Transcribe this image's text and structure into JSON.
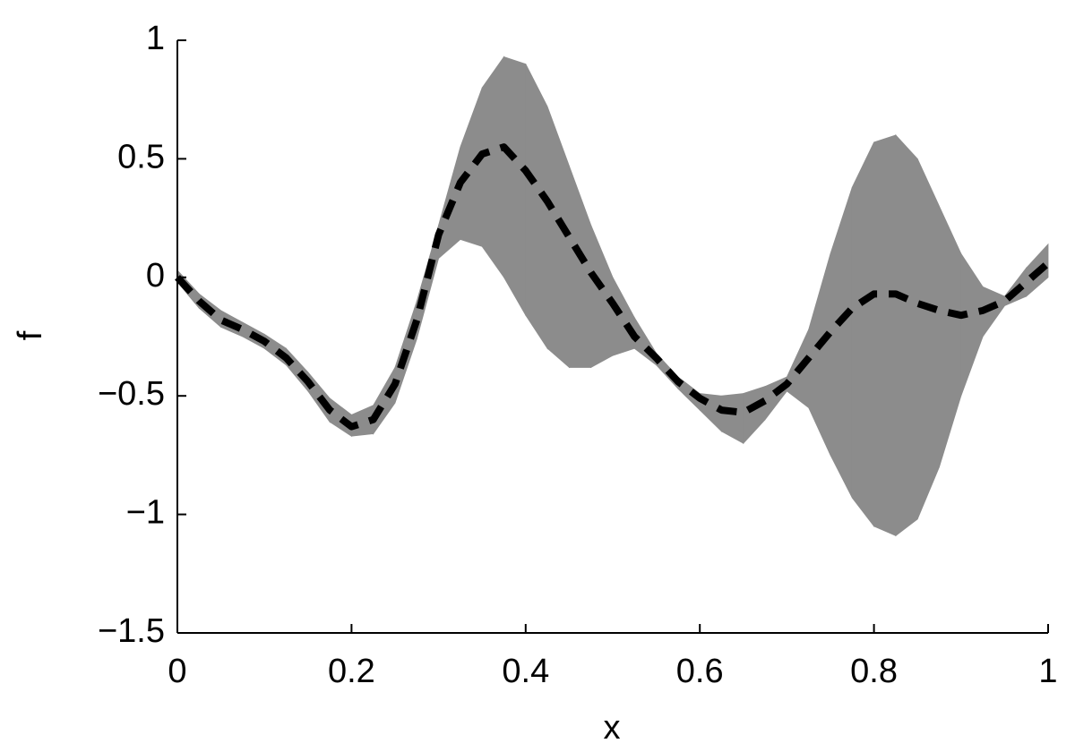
{
  "chart_data": {
    "type": "line",
    "xlabel": "x",
    "ylabel": "f",
    "x": [
      0,
      0.025,
      0.05,
      0.075,
      0.1,
      0.125,
      0.15,
      0.175,
      0.2,
      0.225,
      0.25,
      0.275,
      0.3,
      0.325,
      0.35,
      0.375,
      0.4,
      0.425,
      0.45,
      0.475,
      0.5,
      0.525,
      0.55,
      0.575,
      0.6,
      0.625,
      0.65,
      0.675,
      0.7,
      0.725,
      0.75,
      0.775,
      0.8,
      0.825,
      0.85,
      0.875,
      0.9,
      0.925,
      0.95,
      0.975,
      1
    ],
    "series": [
      {
        "color": "#000000",
        "dashed": true,
        "values": [
          0,
          -0.1,
          -0.18,
          -0.22,
          -0.27,
          -0.34,
          -0.44,
          -0.56,
          -0.63,
          -0.6,
          -0.45,
          -0.18,
          0.18,
          0.4,
          0.52,
          0.55,
          0.45,
          0.32,
          0.17,
          0.02,
          -0.11,
          -0.25,
          -0.34,
          -0.44,
          -0.51,
          -0.56,
          -0.57,
          -0.52,
          -0.45,
          -0.34,
          -0.23,
          -0.13,
          -0.07,
          -0.07,
          -0.11,
          -0.14,
          -0.16,
          -0.14,
          -0.1,
          -0.02,
          0.06
        ]
      }
    ],
    "band": {
      "color": "#8c8c8c",
      "upper": [
        0.03,
        -0.07,
        -0.14,
        -0.19,
        -0.24,
        -0.3,
        -0.4,
        -0.51,
        -0.58,
        -0.54,
        -0.38,
        -0.1,
        0.22,
        0.55,
        0.8,
        0.93,
        0.9,
        0.72,
        0.47,
        0.22,
        0,
        -0.17,
        -0.32,
        -0.42,
        -0.49,
        -0.5,
        -0.49,
        -0.46,
        -0.42,
        -0.22,
        0.1,
        0.38,
        0.57,
        0.6,
        0.5,
        0.3,
        0.1,
        -0.04,
        -0.08,
        0.04,
        0.14
      ],
      "lower": [
        -0.02,
        -0.13,
        -0.21,
        -0.25,
        -0.3,
        -0.37,
        -0.48,
        -0.61,
        -0.67,
        -0.66,
        -0.53,
        -0.26,
        0.08,
        0.16,
        0.13,
        0,
        -0.16,
        -0.3,
        -0.38,
        -0.38,
        -0.33,
        -0.3,
        -0.37,
        -0.47,
        -0.56,
        -0.65,
        -0.7,
        -0.6,
        -0.48,
        -0.55,
        -0.75,
        -0.93,
        -1.05,
        -1.09,
        -1.02,
        -0.8,
        -0.5,
        -0.25,
        -0.12,
        -0.08,
        0
      ]
    },
    "xlim": [
      0,
      1
    ],
    "xticks": [
      0,
      0.2,
      0.4,
      0.6,
      0.8,
      1
    ],
    "ylim": [
      -1.5,
      1
    ],
    "yticks": [
      {
        "value": -1.5,
        "label": "−1.5"
      },
      {
        "value": -1,
        "label": "−1"
      },
      {
        "value": -0.5,
        "label": "−0.5"
      },
      0,
      0.5,
      1
    ],
    "grid": false
  }
}
